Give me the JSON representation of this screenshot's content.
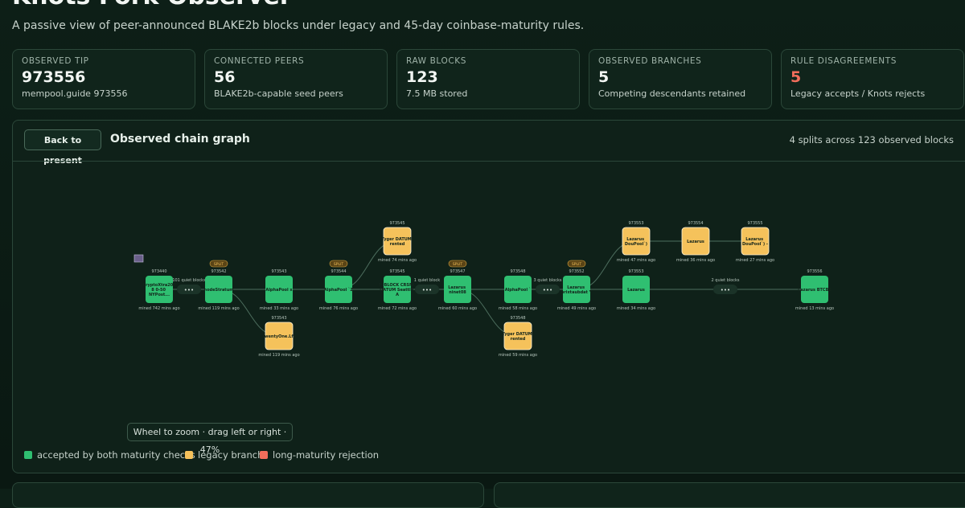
{
  "header": {
    "title": "Knots Fork Observer",
    "subtitle": "A passive view of peer-announced BLAKE2b blocks under legacy and 45-day coinbase-maturity rules."
  },
  "stats": [
    {
      "label": "OBSERVED TIP",
      "value": "973556",
      "note": "mempool.guide 973556"
    },
    {
      "label": "CONNECTED PEERS",
      "value": "56",
      "note": "BLAKE2b-capable seed peers"
    },
    {
      "label": "RAW BLOCKS",
      "value": "123",
      "note": "7.5 MB stored"
    },
    {
      "label": "OBSERVED BRANCHES",
      "value": "5",
      "note": "Competing descendants retained"
    },
    {
      "label": "RULE DISAGREEMENTS",
      "value": "5",
      "note": "Legacy accepts / Knots rejects",
      "color": "#f26d5b"
    }
  ],
  "graph": {
    "button": "Back to present",
    "title": "Observed chain graph",
    "summary": "4 splits across 123 observed blocks",
    "gap_marker": "•••",
    "nodes": [
      {
        "height": "973440",
        "label": ".CryptoXtra200 8 0-50 NYPost...",
        "meta": "mined 742 mins ago",
        "color": "#2fbf71"
      },
      {
        "height": "973542",
        "label": "nodeStratum",
        "meta": "mined 119 mins ago",
        "color": "#2fbf71",
        "badge": "SPLIT"
      },
      {
        "height": "973543",
        "label": "TwentyOne.Lfe",
        "meta": "mined 119 mins ago",
        "color": "#f5c25b"
      },
      {
        "height": "973543",
        "label": "AlphaPool x",
        "meta": "mined 33 mins ago",
        "color": "#2fbf71"
      },
      {
        "height": "973544",
        "label": "AlphaPool `Z",
        "meta": "mined 76 mins ago",
        "color": "#2fbf71",
        "badge": "SPLIT"
      },
      {
        "height": "973545",
        "label": "Tyger DATUM rented",
        "meta": "mined 74 mins ago",
        "color": "#f5c25b"
      },
      {
        "height": "973545",
        "label": "PyBLOCK CRSFA DATUM Seattle A",
        "meta": "mined 72 mins ago",
        "color": "#2fbf71"
      },
      {
        "height": "973547",
        "label": "Lazarus ninet08",
        "meta": "mined 60 mins ago",
        "color": "#2fbf71",
        "badge": "SPLIT"
      },
      {
        "height": "973548",
        "label": "AlphaPool `",
        "meta": "mined 58 mins ago",
        "color": "#2fbf71"
      },
      {
        "height": "973548",
        "label": "Tyger DATUM rented",
        "meta": "mined 59 mins ago",
        "color": "#f5c25b"
      },
      {
        "height": "973552",
        "label": "Lazarus brixtaubdat Y",
        "meta": "mined 49 mins ago",
        "color": "#2fbf71",
        "badge": "SPLIT"
      },
      {
        "height": "973553",
        "label": "Lazarus DouPool`)",
        "meta": "mined 47 mins ago",
        "color": "#f5c25b"
      },
      {
        "height": "973553",
        "label": "Lazarus",
        "meta": "mined 34 mins ago",
        "color": "#2fbf71"
      },
      {
        "height": "973554",
        "label": "Lazarus",
        "meta": "mined 36 mins ago",
        "color": "#f5c25b"
      },
      {
        "height": "973555",
        "label": "Lazarus DouPool`) -",
        "meta": "mined 27 mins ago",
        "color": "#f5c25b"
      },
      {
        "height": "973556",
        "label": "Lazarus BTCB2",
        "meta": "mined 13 mins ago",
        "color": "#2fbf71"
      }
    ],
    "gaps": [
      {
        "label": "101 quiet blocks"
      },
      {
        "label": "1 quiet block"
      },
      {
        "label": "3 quiet blocks"
      },
      {
        "label": "2 quiet blocks"
      }
    ],
    "zoom_hint": "Wheel to zoom · drag left or right · 47%",
    "legend": [
      {
        "label": "accepted by both maturity checks",
        "color": "#2fbf71"
      },
      {
        "label": "legacy branch",
        "color": "#f5c25b"
      },
      {
        "label": "long-maturity rejection",
        "color": "#f26d5b"
      }
    ]
  }
}
